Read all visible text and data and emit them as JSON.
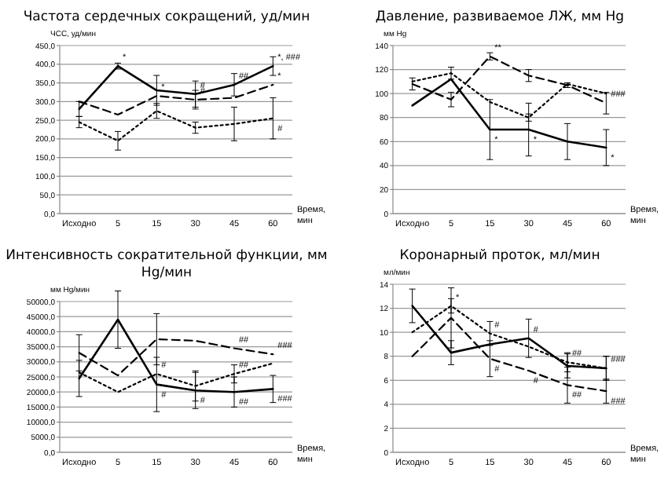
{
  "chart_data": [
    {
      "type": "line",
      "title": "Частота сердечных сокращений, уд/мин",
      "ylabel": "ЧСС, уд/мин",
      "xlabel": "Время, мин",
      "categories": [
        "Исходно",
        "5",
        "15",
        "30",
        "45",
        "60"
      ],
      "ylim": [
        0,
        450
      ],
      "yticks": [
        {
          "value": 0,
          "label": "0,0"
        },
        {
          "value": 50,
          "label": "50,0"
        },
        {
          "value": 100,
          "label": "100,0"
        },
        {
          "value": 150,
          "label": "150,0"
        },
        {
          "value": 200,
          "label": "200,0"
        },
        {
          "value": 250,
          "label": "250,0"
        },
        {
          "value": 300,
          "label": "300,0"
        },
        {
          "value": 350,
          "label": "350,0"
        },
        {
          "value": 400,
          "label": "400,0"
        },
        {
          "value": 450,
          "label": "450,0"
        }
      ],
      "grid": "y",
      "marker": "none",
      "series": [
        {
          "color": "#000000",
          "line_style": "solid",
          "values": [
            280,
            395,
            330,
            320,
            345,
            395
          ],
          "errors": [
            20,
            8,
            40,
            35,
            30,
            25
          ]
        },
        {
          "color": "#000000",
          "line_style": "dashed",
          "values": [
            300,
            265,
            315,
            305,
            310,
            345
          ],
          "errors": [
            null,
            null,
            null,
            25,
            null,
            null
          ]
        },
        {
          "color": "#000000",
          "line_style": "dotted",
          "values": [
            245,
            195,
            275,
            230,
            240,
            255
          ],
          "errors": [
            15,
            25,
            20,
            15,
            45,
            55
          ]
        }
      ],
      "annotations": [
        {
          "text": "*",
          "x": "5",
          "y": 395
        },
        {
          "text": "#",
          "x": "30",
          "y": 320
        },
        {
          "text": "##",
          "x": "45",
          "y": 345
        },
        {
          "text": "*, ###",
          "x": "60",
          "y": 395
        },
        {
          "text": "*",
          "x": "60",
          "y": 345
        },
        {
          "text": "#",
          "x": "60",
          "y": 255
        },
        {
          "text": "*",
          "x": "15",
          "y": 315
        },
        {
          "text": "#",
          "x": "30",
          "y": 305
        }
      ]
    },
    {
      "type": "line",
      "title": "Давление, развиваемое ЛЖ, мм Hg",
      "ylabel": "мм Hg",
      "xlabel": "Время, мин",
      "categories": [
        "Исходно",
        "5",
        "15",
        "30",
        "45",
        "60"
      ],
      "ylim": [
        0,
        140
      ],
      "yticks": [
        0,
        20,
        40,
        60,
        80,
        100,
        120,
        140
      ],
      "grid": "y",
      "marker": "none",
      "series": [
        {
          "color": "#000000",
          "line_style": "solid",
          "values": [
            90,
            112,
            70,
            70,
            60,
            55
          ],
          "errors": [
            null,
            null,
            25,
            22,
            15,
            15
          ]
        },
        {
          "color": "#000000",
          "line_style": "dashed",
          "values": [
            108,
            95,
            131,
            115,
            107,
            92
          ],
          "errors": [
            5,
            6,
            3,
            5,
            2,
            9
          ]
        },
        {
          "color": "#000000",
          "line_style": "dotted",
          "values": [
            110,
            117,
            93,
            80,
            108,
            100
          ],
          "errors": [
            null,
            5,
            null,
            3,
            null,
            null
          ]
        }
      ],
      "annotations": [
        {
          "text": "**",
          "x": "15",
          "y": 131
        },
        {
          "text": "###",
          "x": "60",
          "y": 92
        },
        {
          "text": "*",
          "x": "15",
          "y": 70
        },
        {
          "text": "*",
          "x": "30",
          "y": 70
        },
        {
          "text": "*",
          "x": "60",
          "y": 55
        }
      ]
    },
    {
      "type": "line",
      "title": "Интенсивность сократительной функции, мм Hg/мин",
      "ylabel": "мм Hg/мин",
      "xlabel": "Время, мин",
      "categories": [
        "Исходно",
        "5",
        "15",
        "30",
        "45",
        "60"
      ],
      "ylim": [
        0,
        50000
      ],
      "yticks": [
        {
          "value": 0,
          "label": "0,0"
        },
        {
          "value": 5000,
          "label": "5000,0"
        },
        {
          "value": 10000,
          "label": "10000,0"
        },
        {
          "value": 15000,
          "label": "15000,0"
        },
        {
          "value": 20000,
          "label": "20000,0"
        },
        {
          "value": 25000,
          "label": "25000,0"
        },
        {
          "value": 30000,
          "label": "30000,0"
        },
        {
          "value": 35000,
          "label": "35000,0"
        },
        {
          "value": 40000,
          "label": "40000,0"
        },
        {
          "value": 45000,
          "label": "45000,0"
        },
        {
          "value": 50000,
          "label": "50000,0"
        }
      ],
      "grid": "y",
      "marker": "none",
      "series": [
        {
          "color": "#000000",
          "line_style": "solid",
          "values": [
            24500,
            44000,
            22500,
            20500,
            20000,
            21000
          ],
          "errors": [
            6000,
            9500,
            9000,
            6000,
            5000,
            4500
          ]
        },
        {
          "color": "#000000",
          "line_style": "dashed",
          "values": [
            33000,
            25500,
            37500,
            37000,
            34500,
            32500
          ],
          "errors": [
            6000,
            null,
            8500,
            null,
            null,
            null
          ]
        },
        {
          "color": "#000000",
          "line_style": "dotted",
          "values": [
            26500,
            20000,
            26000,
            22000,
            26000,
            29500
          ],
          "errors": [
            null,
            null,
            null,
            5000,
            3000,
            null
          ]
        }
      ],
      "annotations": [
        {
          "text": "#",
          "x": "15",
          "y": 26000
        },
        {
          "text": "##",
          "x": "45",
          "y": 34500
        },
        {
          "text": "###",
          "x": "60",
          "y": 32500
        },
        {
          "text": "##",
          "x": "45",
          "y": 26000
        },
        {
          "text": "#",
          "x": "15",
          "y": 22500
        },
        {
          "text": "#",
          "x": "30",
          "y": 20500
        },
        {
          "text": "##",
          "x": "45",
          "y": 20000
        },
        {
          "text": "###",
          "x": "60",
          "y": 21000
        }
      ]
    },
    {
      "type": "line",
      "title": "Коронарный проток, мл/мин",
      "ylabel": "мл/мин",
      "xlabel": "Время, мин",
      "categories": [
        "Исходно",
        "5",
        "15",
        "30",
        "45",
        "60"
      ],
      "ylim": [
        0,
        14
      ],
      "yticks": [
        0,
        2,
        4,
        6,
        8,
        10,
        12,
        14
      ],
      "grid": "y",
      "marker": "none",
      "series": [
        {
          "color": "#000000",
          "line_style": "solid",
          "values": [
            12.2,
            8.3,
            9,
            9.5,
            7.2,
            7
          ],
          "errors": [
            1.4,
            1,
            null,
            1.6,
            1,
            1
          ]
        },
        {
          "color": "#000000",
          "line_style": "dashed",
          "values": [
            8,
            11.2,
            7.8,
            6.8,
            5.6,
            5.1
          ],
          "errors": [
            null,
            2.5,
            1.5,
            null,
            1.5,
            1
          ]
        },
        {
          "color": "#000000",
          "line_style": "dotted",
          "values": [
            10,
            12.2,
            9.9,
            8.8,
            7.5,
            7
          ],
          "errors": [
            null,
            0.6,
            1,
            null,
            0.8,
            1
          ]
        }
      ],
      "annotations": [
        {
          "text": "*",
          "x": "5",
          "y": 12.2
        },
        {
          "text": "#",
          "x": "15",
          "y": 9.9
        },
        {
          "text": "#",
          "x": "30",
          "y": 9.5
        },
        {
          "text": "##",
          "x": "45",
          "y": 7.5
        },
        {
          "text": "###",
          "x": "60",
          "y": 7
        },
        {
          "text": "#",
          "x": "15",
          "y": 7.8
        },
        {
          "text": "#",
          "x": "30",
          "y": 6.8
        },
        {
          "text": "##",
          "x": "45",
          "y": 5.6
        },
        {
          "text": "###",
          "x": "60",
          "y": 5.1
        }
      ]
    }
  ]
}
